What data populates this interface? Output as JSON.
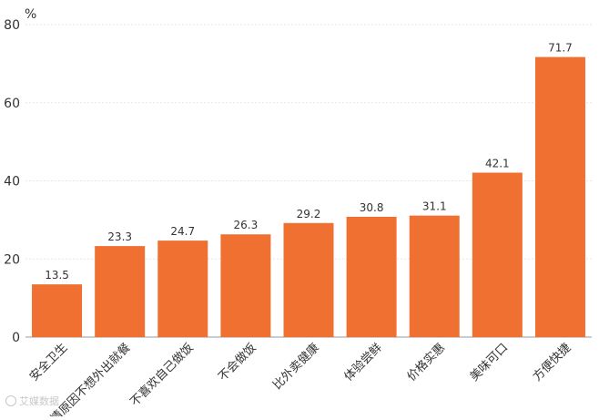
{
  "chart_data": {
    "type": "bar",
    "unit_label": "%",
    "categories": [
      "安全卫生",
      "疫情原因不想外出就餐",
      "不喜欢自己做饭",
      "不会做饭",
      "比外卖健康",
      "体验尝鲜",
      "价格实惠",
      "美味可口",
      "方便快捷"
    ],
    "values": [
      13.5,
      23.3,
      24.7,
      26.3,
      29.2,
      30.8,
      31.1,
      42.1,
      71.7
    ],
    "value_labels": [
      "13.5",
      "23.3",
      "24.7",
      "26.3",
      "29.2",
      "30.8",
      "31.1",
      "42.1",
      "71.7"
    ],
    "ylim": [
      0,
      80
    ],
    "yticks": [
      0,
      20,
      40,
      60,
      80
    ],
    "ytick_labels": [
      "0",
      "20",
      "40",
      "60",
      "80"
    ],
    "bar_color": "#ef7030",
    "grid": true,
    "legend": false
  },
  "watermark": {
    "text": "艾媒数据",
    "icon": "logo-icon"
  }
}
